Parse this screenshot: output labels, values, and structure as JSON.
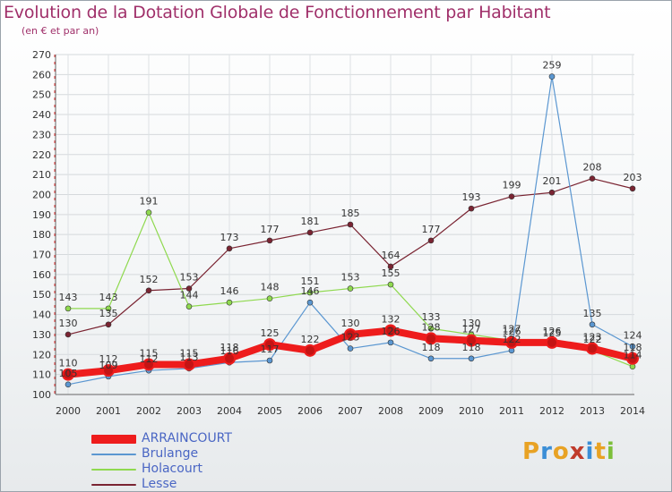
{
  "header": {
    "title": "Evolution de la Dotation Globale de Fonctionnement par Habitant",
    "subtitle": "(en € et par an)"
  },
  "logo": {
    "text": "Proxiti",
    "letters": [
      "P",
      "r",
      "o",
      "x",
      "i",
      "t",
      "i"
    ],
    "colors": [
      "#e8a224",
      "#3b8ed6",
      "#e8a224",
      "#c03b2b",
      "#3b8ed6",
      "#e8a224",
      "#7cbf3a"
    ]
  },
  "chart_data": {
    "type": "line",
    "x": [
      "2000",
      "2001",
      "2002",
      "2003",
      "2004",
      "2005",
      "2006",
      "2007",
      "2008",
      "2009",
      "2010",
      "2011",
      "2012",
      "2013",
      "2014"
    ],
    "ylim": [
      100,
      270
    ],
    "y_ticks": [
      100,
      110,
      120,
      130,
      140,
      150,
      160,
      170,
      180,
      190,
      200,
      210,
      220,
      230,
      240,
      250,
      260,
      270
    ],
    "grid": true,
    "legend_position": "bottom-left",
    "series": [
      {
        "name": "Lesse",
        "color": "#7a2432",
        "width": 1.2,
        "values": [
          130,
          135,
          152,
          153,
          173,
          177,
          181,
          185,
          164,
          177,
          193,
          199,
          201,
          208,
          203
        ]
      },
      {
        "name": "Holacourt",
        "color": "#8fd94f",
        "width": 1.2,
        "values": [
          143,
          143,
          191,
          144,
          146,
          148,
          151,
          153,
          155,
          133,
          130,
          127,
          125,
          122,
          114
        ]
      },
      {
        "name": "Brulange",
        "color": "#5b97d1",
        "width": 1.2,
        "values": [
          105,
          109,
          112,
          113,
          116,
          117,
          146,
          123,
          126,
          118,
          118,
          122,
          259,
          135,
          124
        ]
      },
      {
        "name": "ARRAINCOURT",
        "color": "#ee1c1c",
        "width": 8,
        "values": [
          110,
          112,
          115,
          115,
          118,
          125,
          122,
          130,
          132,
          128,
          127,
          126,
          126,
          123,
          118
        ]
      }
    ],
    "data_labels": [
      [
        "130",
        "135",
        "152",
        "153",
        "173",
        "177",
        "181",
        "185",
        "164",
        "177",
        "193",
        "199",
        "201",
        "208",
        "203"
      ],
      [
        "143",
        "143",
        "191",
        "144",
        "146",
        "148",
        "151",
        "153",
        "155",
        "133",
        "130",
        "127",
        "125",
        "122",
        "114"
      ],
      [
        "105",
        "109",
        "112",
        "113",
        "116",
        "117",
        "146",
        "123",
        "126",
        "118",
        "118",
        "122",
        "259",
        "135",
        "124"
      ],
      [
        "110",
        "112",
        "115",
        "115",
        "118",
        "125",
        "122",
        "130",
        "132",
        "128",
        "127",
        "126",
        "126",
        "123",
        "118"
      ]
    ],
    "legend_order": [
      "ARRAINCOURT",
      "Brulange",
      "Holacourt",
      "Lesse"
    ]
  }
}
